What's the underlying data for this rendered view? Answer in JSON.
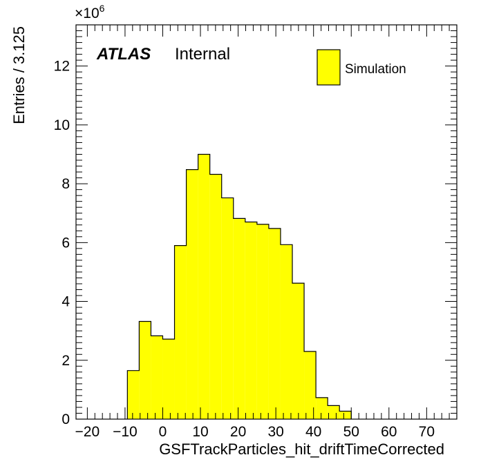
{
  "chart_data": {
    "type": "bar",
    "style": "step-histogram",
    "xlabel": "GSFTrackParticles_hit_driftTimeCorrected",
    "ylabel": "Entries / 3.125",
    "y_multiplier": "×10",
    "y_multiplier_exponent": "6",
    "xlim": [
      -23,
      78
    ],
    "ylim": [
      0,
      13.4
    ],
    "x_ticks": [
      -20,
      -10,
      0,
      10,
      20,
      30,
      40,
      50,
      60,
      70
    ],
    "x_tick_labels": [
      "−20",
      "−10",
      "0",
      "10",
      "20",
      "30",
      "40",
      "50",
      "60",
      "70"
    ],
    "y_ticks": [
      0,
      2,
      4,
      6,
      8,
      10,
      12
    ],
    "y_tick_labels": [
      "0",
      "2",
      "4",
      "6",
      "8",
      "10",
      "12"
    ],
    "bin_width": 3.125,
    "bin_edges": [
      -9.375,
      -6.25,
      -3.125,
      0,
      3.125,
      6.25,
      9.375,
      12.5,
      15.625,
      18.75,
      21.875,
      25,
      28.125,
      31.25,
      34.375,
      37.5,
      40.625,
      43.75,
      46.875,
      50
    ],
    "values": [
      1.65,
      3.32,
      2.83,
      2.72,
      5.9,
      8.48,
      9.0,
      8.32,
      7.52,
      6.82,
      6.7,
      6.62,
      6.48,
      5.93,
      4.62,
      2.3,
      0.73,
      0.46,
      0.27
    ],
    "fill_color": "#ffff00",
    "line_color": "#000000",
    "legend": {
      "entries": [
        "Simulation"
      ],
      "placement": "top-right"
    },
    "grid": false,
    "atlas_label": "ATLAS",
    "atlas_sublabel": "Internal"
  }
}
